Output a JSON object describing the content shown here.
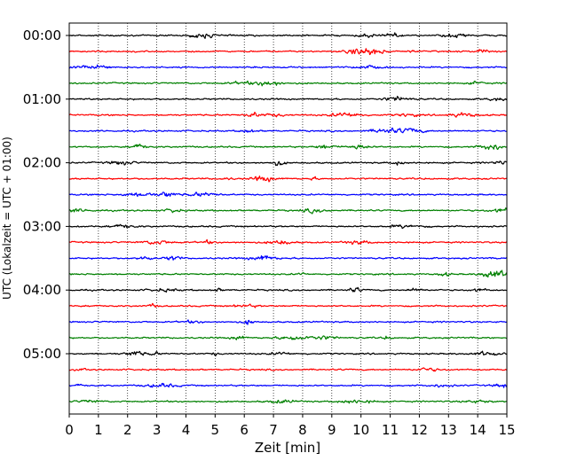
{
  "chart_data": {
    "type": "line",
    "title": "",
    "xlabel": "Zeit  [min]",
    "ylabel": "UTC (Lokalzeit = UTC + 01:00)",
    "xlim": [
      0,
      15
    ],
    "x_ticks": [
      "0",
      "1",
      "2",
      "3",
      "4",
      "5",
      "6",
      "7",
      "8",
      "9",
      "10",
      "11",
      "12",
      "13",
      "14",
      "15"
    ],
    "y_ticks": [
      "00:00",
      "01:00",
      "02:00",
      "03:00",
      "04:00",
      "05:00"
    ],
    "vertical_grid": true,
    "grid_style": "dotted",
    "trace_interval_min": 15,
    "trace_colors": [
      "#000000",
      "#ff0000",
      "#0000ff",
      "#008000"
    ],
    "trace_count": 24
  }
}
